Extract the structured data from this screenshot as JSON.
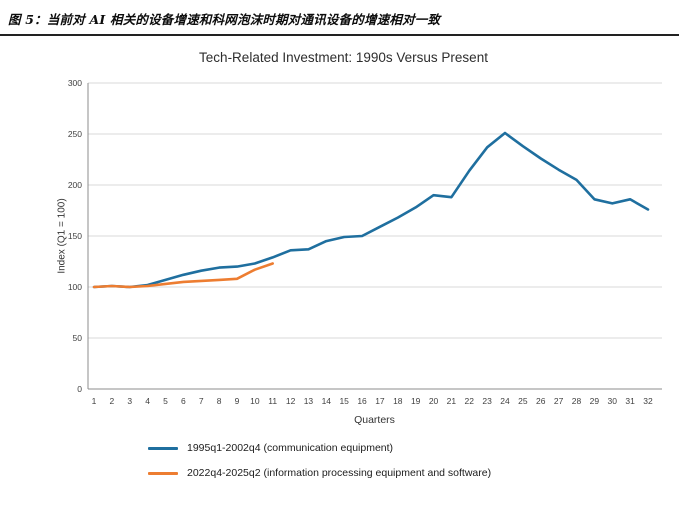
{
  "caption": {
    "text": "图 5：当前对 AI 相关的设备增速和科网泡沫时期对通讯设备的增速相对一致"
  },
  "chart_data": {
    "type": "line",
    "title": "Tech-Related Investment: 1990s Versus Present",
    "xlabel": "Quarters",
    "ylabel": "Index (Q1 = 100)",
    "ylim": [
      0,
      300
    ],
    "ytick_step": 50,
    "grid": "horizontal",
    "legend_position": "bottom-left",
    "x": [
      1,
      2,
      3,
      4,
      5,
      6,
      7,
      8,
      9,
      10,
      11,
      12,
      13,
      14,
      15,
      16,
      17,
      18,
      19,
      20,
      21,
      22,
      23,
      24,
      25,
      26,
      27,
      28,
      29,
      30,
      31,
      32
    ],
    "series": [
      {
        "name": "1995q1-2002q4 (communication equipment)",
        "color": "#1F6F9F",
        "values": [
          100,
          101,
          100,
          102,
          107,
          112,
          116,
          119,
          120,
          123,
          129,
          136,
          137,
          145,
          149,
          150,
          159,
          168,
          178,
          190,
          188,
          214,
          237,
          251,
          238,
          226,
          215,
          205,
          186,
          182,
          186,
          176
        ]
      },
      {
        "name": "2022q4-2025q2 (information processing equipment and software)",
        "color": "#ED7D31",
        "values": [
          100,
          101,
          100,
          101,
          103,
          105,
          106,
          107,
          108,
          117,
          123
        ]
      }
    ]
  }
}
